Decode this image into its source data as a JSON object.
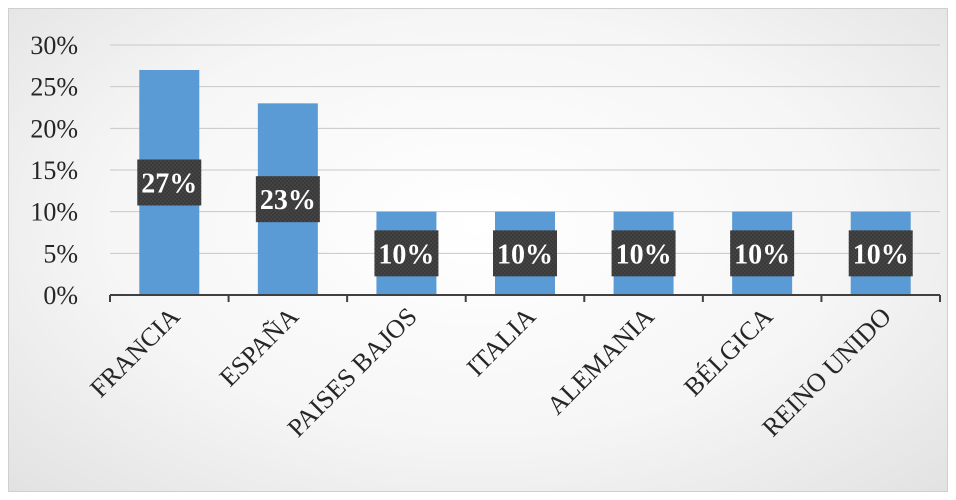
{
  "chart_data": {
    "type": "bar",
    "title": "",
    "xlabel": "",
    "ylabel": "",
    "categories": [
      "FRANCIA",
      "ESPAÑA",
      "PAISES BAJOS",
      "ITALIA",
      "ALEMANIA",
      "BÉLGICA",
      "REINO UNIDO"
    ],
    "values": [
      27,
      23,
      10,
      10,
      10,
      10,
      10
    ],
    "data_labels": [
      "27%",
      "23%",
      "10%",
      "10%",
      "10%",
      "10%",
      "10%"
    ],
    "ylim": [
      0,
      30
    ],
    "yticks": [
      0,
      5,
      10,
      15,
      20,
      25,
      30
    ],
    "ytick_labels": [
      "0%",
      "5%",
      "10%",
      "15%",
      "20%",
      "25%",
      "30%"
    ],
    "grid": true,
    "legend": "none",
    "colors": {
      "bar": "#5B9BD5",
      "label_box": "#3a3a3a",
      "label_text": "#ffffff",
      "grid": "#c8c8c8",
      "axis": "#404040",
      "text": "#262626"
    }
  }
}
